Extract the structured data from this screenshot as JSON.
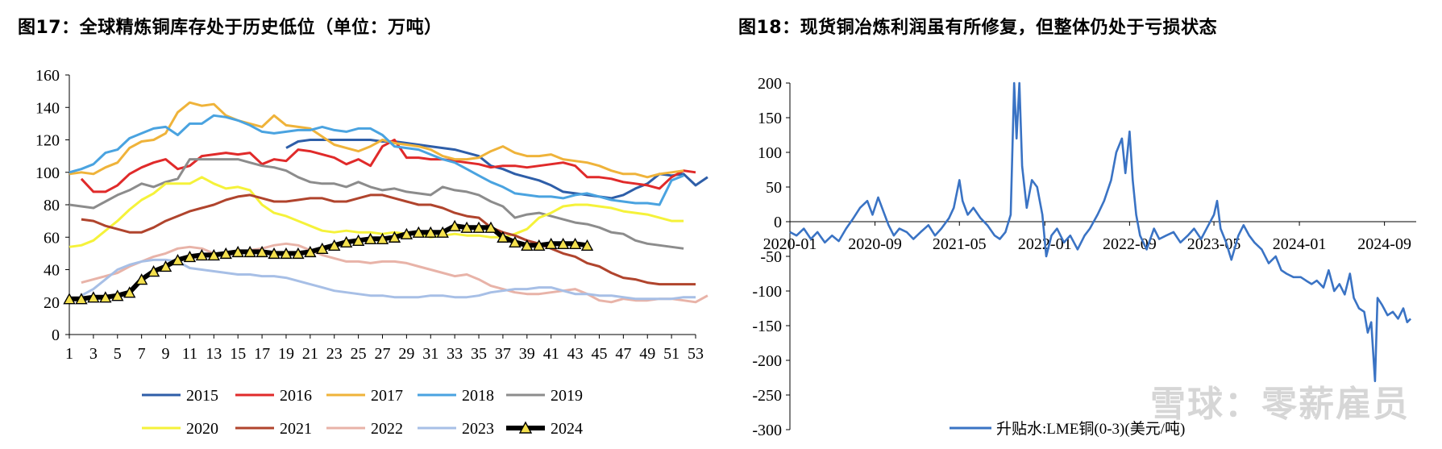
{
  "left_title": "图17：全球精炼铜库存处于历史低位（单位：万吨）",
  "right_title": "图18：现货铜冶炼利润虽有所修复，但整体仍处于亏损状态",
  "watermark": "雪球：零薪雇员",
  "chart_data": [
    {
      "type": "line",
      "title": "图17：全球精炼铜库存处于历史低位（单位：万吨）",
      "xlabel": "",
      "ylabel": "",
      "xlim": [
        1,
        53
      ],
      "ylim": [
        0,
        160
      ],
      "x_ticks": [
        1,
        3,
        5,
        7,
        9,
        11,
        13,
        15,
        17,
        19,
        21,
        23,
        25,
        27,
        29,
        31,
        33,
        35,
        37,
        39,
        41,
        43,
        45,
        47,
        49,
        51,
        53
      ],
      "y_ticks": [
        0,
        20,
        40,
        60,
        80,
        100,
        120,
        140,
        160
      ],
      "legend_position": "bottom",
      "series": [
        {
          "name": "2015",
          "color": "#2e5ea8",
          "start_week": 19,
          "values": [
            115,
            119,
            120,
            120,
            120,
            120,
            120,
            120,
            119,
            119,
            118,
            117,
            116,
            115,
            114,
            112,
            110,
            104,
            102,
            99,
            97,
            95,
            92,
            88,
            87,
            86,
            85,
            84,
            86,
            90,
            93,
            99,
            98,
            99,
            92,
            97
          ]
        },
        {
          "name": "2016",
          "color": "#e02a2a",
          "start_week": 2,
          "values": [
            96,
            88,
            88,
            92,
            99,
            103,
            106,
            108,
            102,
            104,
            110,
            111,
            112,
            111,
            112,
            105,
            108,
            107,
            114,
            113,
            111,
            109,
            105,
            108,
            104,
            116,
            120,
            109,
            109,
            108,
            108,
            107,
            106,
            105,
            103,
            104,
            104,
            103,
            104,
            105,
            106,
            104,
            97,
            97,
            96,
            94,
            93,
            92,
            90,
            97,
            101,
            100
          ]
        },
        {
          "name": "2017",
          "color": "#efb33a",
          "start_week": 1,
          "values": [
            99,
            100,
            99,
            103,
            106,
            115,
            119,
            120,
            124,
            137,
            143,
            141,
            142,
            135,
            132,
            130,
            128,
            135,
            129,
            128,
            127,
            122,
            117,
            115,
            113,
            116,
            120,
            118,
            117,
            116,
            114,
            110,
            108,
            108,
            109,
            113,
            116,
            112,
            110,
            110,
            111,
            108,
            107,
            106,
            104,
            101,
            99,
            99,
            97,
            99,
            100,
            101
          ]
        },
        {
          "name": "2018",
          "color": "#4aa3e0",
          "start_week": 1,
          "values": [
            100,
            102,
            105,
            112,
            114,
            121,
            124,
            127,
            128,
            123,
            130,
            130,
            135,
            134,
            132,
            129,
            125,
            124,
            125,
            126,
            126,
            128,
            126,
            125,
            127,
            127,
            123,
            116,
            115,
            114,
            111,
            108,
            106,
            102,
            98,
            94,
            91,
            87,
            86,
            85,
            85,
            84,
            86,
            87,
            85,
            83,
            82,
            81,
            81,
            80,
            95,
            98
          ]
        },
        {
          "name": "2019",
          "color": "#8c8c8c",
          "start_week": 1,
          "values": [
            80,
            79,
            78,
            82,
            86,
            89,
            93,
            91,
            94,
            96,
            108,
            108,
            108,
            108,
            108,
            106,
            104,
            103,
            101,
            97,
            94,
            93,
            93,
            91,
            94,
            91,
            89,
            90,
            88,
            87,
            86,
            91,
            89,
            88,
            86,
            82,
            79,
            72,
            74,
            75,
            73,
            71,
            69,
            68,
            66,
            63,
            62,
            58,
            56,
            55,
            54,
            53
          ]
        },
        {
          "name": "2020",
          "color": "#f5f23a",
          "start_week": 1,
          "values": [
            54,
            55,
            58,
            64,
            70,
            77,
            83,
            87,
            93,
            93,
            93,
            97,
            93,
            90,
            91,
            89,
            80,
            75,
            73,
            70,
            67,
            64,
            63,
            64,
            63,
            63,
            62,
            63,
            62,
            62,
            60,
            61,
            62,
            61,
            61,
            60,
            60,
            62,
            65,
            72,
            75,
            79,
            80,
            80,
            79,
            78,
            76,
            75,
            74,
            72,
            70,
            70
          ]
        },
        {
          "name": "2021",
          "color": "#b0442d",
          "start_week": 2,
          "values": [
            71,
            70,
            67,
            65,
            63,
            63,
            66,
            70,
            73,
            76,
            78,
            80,
            83,
            85,
            86,
            84,
            82,
            82,
            83,
            84,
            84,
            82,
            82,
            84,
            86,
            86,
            84,
            82,
            80,
            80,
            78,
            75,
            73,
            72,
            66,
            63,
            61,
            58,
            56,
            53,
            50,
            48,
            44,
            42,
            38,
            35,
            34,
            32,
            31,
            31,
            31,
            31
          ]
        },
        {
          "name": "2022",
          "color": "#e8b3a8",
          "start_week": 2,
          "values": [
            32,
            34,
            36,
            38,
            42,
            45,
            48,
            50,
            53,
            54,
            53,
            50,
            49,
            50,
            52,
            53,
            55,
            56,
            55,
            52,
            49,
            47,
            45,
            45,
            44,
            45,
            45,
            44,
            42,
            40,
            38,
            36,
            37,
            34,
            30,
            28,
            26,
            25,
            25,
            26,
            27,
            28,
            25,
            21,
            20,
            22,
            21,
            21,
            22,
            22,
            21,
            20,
            24
          ]
        },
        {
          "name": "2023",
          "color": "#a7bfe6",
          "start_week": 2,
          "values": [
            24,
            28,
            34,
            40,
            43,
            45,
            46,
            46,
            45,
            41,
            40,
            39,
            38,
            37,
            37,
            36,
            36,
            35,
            33,
            31,
            29,
            27,
            26,
            25,
            24,
            24,
            23,
            23,
            23,
            24,
            24,
            23,
            23,
            24,
            26,
            27,
            28,
            28,
            29,
            29,
            27,
            25,
            25,
            24,
            24,
            23,
            22,
            22,
            22,
            22,
            23,
            23
          ]
        },
        {
          "name": "2024",
          "color": "#000000",
          "start_week": 1,
          "marker": "triangle",
          "marker_color": "#f4e04d",
          "values": [
            22,
            22,
            23,
            23,
            24,
            26,
            34,
            39,
            42,
            46,
            48,
            49,
            49,
            50,
            51,
            51,
            51,
            50,
            50,
            50,
            51,
            53,
            55,
            57,
            58,
            59,
            59,
            60,
            62,
            63,
            63,
            63,
            67,
            66,
            66,
            66,
            60,
            57,
            55,
            55,
            56,
            56,
            56,
            55
          ]
        }
      ]
    },
    {
      "type": "line",
      "title": "图18：现货铜冶炼利润虽有所修复，但整体仍处于亏损状态",
      "xlabel": "",
      "ylabel": "",
      "xlim": [
        "2020-01",
        "2024-12"
      ],
      "ylim": [
        -300,
        200
      ],
      "y_ticks": [
        -300,
        -250,
        -200,
        -150,
        -100,
        -50,
        0,
        50,
        100,
        150,
        200
      ],
      "x_ticks": [
        "2020-01",
        "2020-09",
        "2021-05",
        "2022-01",
        "2022-09",
        "2023-05",
        "2024-01",
        "2024-09"
      ],
      "legend_position": "bottom",
      "series": [
        {
          "name": "升贴水:LME铜(0-3)(美元/吨)",
          "color": "#3a73c4",
          "points": [
            [
              "2020-01-01",
              -15
            ],
            [
              "2020-01-20",
              -20
            ],
            [
              "2020-02-10",
              -10
            ],
            [
              "2020-03-01",
              -25
            ],
            [
              "2020-03-20",
              -15
            ],
            [
              "2020-04-10",
              -30
            ],
            [
              "2020-05-01",
              -20
            ],
            [
              "2020-05-20",
              -28
            ],
            [
              "2020-06-10",
              -10
            ],
            [
              "2020-07-01",
              5
            ],
            [
              "2020-07-20",
              20
            ],
            [
              "2020-08-10",
              30
            ],
            [
              "2020-08-25",
              10
            ],
            [
              "2020-09-10",
              35
            ],
            [
              "2020-09-25",
              15
            ],
            [
              "2020-10-10",
              -5
            ],
            [
              "2020-10-25",
              -20
            ],
            [
              "2020-11-10",
              -10
            ],
            [
              "2020-12-01",
              -15
            ],
            [
              "2020-12-20",
              -25
            ],
            [
              "2021-01-10",
              -15
            ],
            [
              "2021-02-01",
              -5
            ],
            [
              "2021-02-20",
              -20
            ],
            [
              "2021-03-10",
              -10
            ],
            [
              "2021-04-01",
              5
            ],
            [
              "2021-04-15",
              20
            ],
            [
              "2021-05-01",
              60
            ],
            [
              "2021-05-10",
              30
            ],
            [
              "2021-05-25",
              10
            ],
            [
              "2021-06-10",
              20
            ],
            [
              "2021-07-01",
              5
            ],
            [
              "2021-07-20",
              -5
            ],
            [
              "2021-08-10",
              -20
            ],
            [
              "2021-08-25",
              -25
            ],
            [
              "2021-09-10",
              -15
            ],
            [
              "2021-09-25",
              10
            ],
            [
              "2021-10-05",
              200
            ],
            [
              "2021-10-12",
              120
            ],
            [
              "2021-10-20",
              200
            ],
            [
              "2021-10-28",
              80
            ],
            [
              "2021-11-10",
              20
            ],
            [
              "2021-11-25",
              60
            ],
            [
              "2021-12-10",
              50
            ],
            [
              "2021-12-25",
              10
            ],
            [
              "2022-01-05",
              -50
            ],
            [
              "2022-01-20",
              -20
            ],
            [
              "2022-02-05",
              -10
            ],
            [
              "2022-02-25",
              -30
            ],
            [
              "2022-03-15",
              -20
            ],
            [
              "2022-04-05",
              -40
            ],
            [
              "2022-04-25",
              -20
            ],
            [
              "2022-05-10",
              -10
            ],
            [
              "2022-06-01",
              10
            ],
            [
              "2022-06-20",
              30
            ],
            [
              "2022-07-10",
              60
            ],
            [
              "2022-07-25",
              100
            ],
            [
              "2022-08-10",
              120
            ],
            [
              "2022-08-20",
              70
            ],
            [
              "2022-09-01",
              130
            ],
            [
              "2022-09-10",
              60
            ],
            [
              "2022-09-20",
              10
            ],
            [
              "2022-10-01",
              -20
            ],
            [
              "2022-10-20",
              -40
            ],
            [
              "2022-11-10",
              -10
            ],
            [
              "2022-11-25",
              -25
            ],
            [
              "2022-12-15",
              -20
            ],
            [
              "2023-01-05",
              -15
            ],
            [
              "2023-01-25",
              -30
            ],
            [
              "2023-02-15",
              -20
            ],
            [
              "2023-03-05",
              -10
            ],
            [
              "2023-03-25",
              -25
            ],
            [
              "2023-04-15",
              -5
            ],
            [
              "2023-05-01",
              10
            ],
            [
              "2023-05-10",
              30
            ],
            [
              "2023-05-20",
              -10
            ],
            [
              "2023-06-05",
              -30
            ],
            [
              "2023-06-20",
              -55
            ],
            [
              "2023-07-10",
              -20
            ],
            [
              "2023-07-25",
              -5
            ],
            [
              "2023-08-10",
              -20
            ],
            [
              "2023-08-25",
              -30
            ],
            [
              "2023-09-15",
              -40
            ],
            [
              "2023-10-05",
              -60
            ],
            [
              "2023-10-25",
              -50
            ],
            [
              "2023-11-10",
              -70
            ],
            [
              "2023-11-25",
              -75
            ],
            [
              "2023-12-15",
              -80
            ],
            [
              "2024-01-05",
              -80
            ],
            [
              "2024-01-20",
              -85
            ],
            [
              "2024-02-05",
              -90
            ],
            [
              "2024-02-20",
              -85
            ],
            [
              "2024-03-10",
              -95
            ],
            [
              "2024-03-25",
              -70
            ],
            [
              "2024-04-10",
              -100
            ],
            [
              "2024-04-25",
              -90
            ],
            [
              "2024-05-10",
              -105
            ],
            [
              "2024-05-25",
              -75
            ],
            [
              "2024-06-05",
              -110
            ],
            [
              "2024-06-20",
              -125
            ],
            [
              "2024-07-05",
              -130
            ],
            [
              "2024-07-15",
              -160
            ],
            [
              "2024-07-25",
              -145
            ],
            [
              "2024-08-05",
              -230
            ],
            [
              "2024-08-12",
              -110
            ],
            [
              "2024-08-25",
              -120
            ],
            [
              "2024-09-10",
              -135
            ],
            [
              "2024-09-25",
              -130
            ],
            [
              "2024-10-10",
              -140
            ],
            [
              "2024-10-25",
              -125
            ],
            [
              "2024-11-05",
              -145
            ],
            [
              "2024-11-15",
              -140
            ]
          ]
        }
      ]
    }
  ]
}
